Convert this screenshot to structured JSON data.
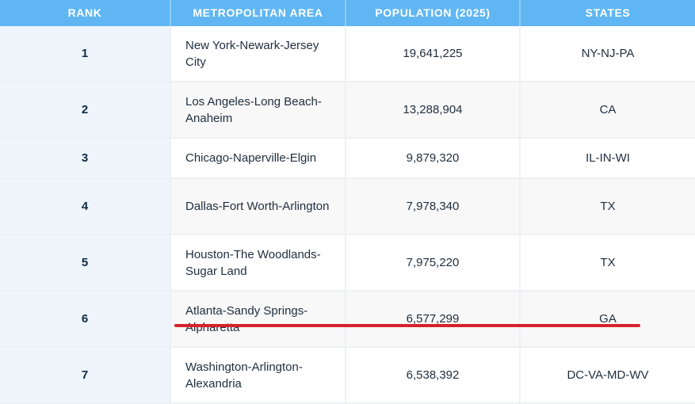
{
  "header": {
    "rank": "RANK",
    "metro": "METROPOLITAN AREA",
    "population": "POPULATION (2025)",
    "states": "STATES"
  },
  "rows": [
    {
      "rank": "1",
      "metro": "New York-Newark-Jersey City",
      "population": "19,641,225",
      "states": "NY-NJ-PA"
    },
    {
      "rank": "2",
      "metro": "Los Angeles-Long Beach-Anaheim",
      "population": "13,288,904",
      "states": "CA"
    },
    {
      "rank": "3",
      "metro": "Chicago-Naperville-Elgin",
      "population": "9,879,320",
      "states": "IL-IN-WI"
    },
    {
      "rank": "4",
      "metro": "Dallas-Fort Worth-Arlington",
      "population": "7,978,340",
      "states": "TX"
    },
    {
      "rank": "5",
      "metro": "Houston-The Woodlands-Sugar Land",
      "population": "7,975,220",
      "states": "TX"
    },
    {
      "rank": "6",
      "metro": "Atlanta-Sandy Springs-Alpharetta",
      "population": "6,577,299",
      "states": "GA"
    },
    {
      "rank": "7",
      "metro": "Washington-Arlington-Alexandria",
      "population": "6,538,392",
      "states": "DC-VA-MD-WV"
    }
  ],
  "colors": {
    "header_bg": "#5fb6f2",
    "rank_bg": "#eef5fb",
    "highlight": "#d7222b"
  }
}
